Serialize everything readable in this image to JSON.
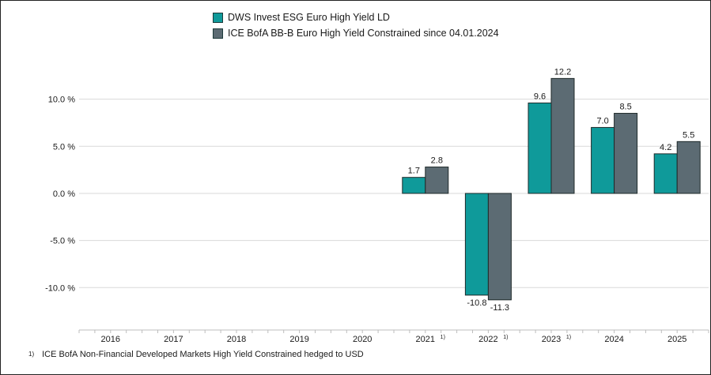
{
  "legend": [
    {
      "label": "DWS Invest ESG Euro High Yield LD",
      "color": "#0f9a9a"
    },
    {
      "label": "ICE BofA BB-B Euro High Yield Constrained since 04.01.2024",
      "color": "#5c6b73"
    }
  ],
  "footnote": {
    "marker": "1)",
    "text": "ICE BofA Non-Financial Developed Markets High Yield Constrained hedged to USD"
  },
  "chart_data": {
    "type": "bar",
    "categories": [
      "2016",
      "2017",
      "2018",
      "2019",
      "2020",
      "2021",
      "2022",
      "2023",
      "2024",
      "2025"
    ],
    "category_markers": [
      "",
      "",
      "",
      "",
      "",
      "1)",
      "1)",
      "1)",
      "",
      ""
    ],
    "series": [
      {
        "name": "DWS Invest ESG Euro High Yield LD",
        "values": [
          null,
          null,
          null,
          null,
          null,
          1.7,
          -10.8,
          9.6,
          7.0,
          4.2
        ],
        "labels": [
          "",
          "",
          "",
          "",
          "",
          "1.7",
          "-10.8",
          "9.6",
          "7.0",
          "4.2"
        ],
        "color": "#0f9a9a"
      },
      {
        "name": "ICE BofA BB-B Euro High Yield Constrained since 04.01.2024",
        "values": [
          null,
          null,
          null,
          null,
          null,
          2.8,
          -11.3,
          12.2,
          8.5,
          5.5
        ],
        "labels": [
          "",
          "",
          "",
          "",
          "",
          "2.8",
          "-11.3",
          "12.2",
          "8.5",
          "5.5"
        ],
        "color": "#5c6b73"
      }
    ],
    "yticks": [
      -10,
      -5,
      0,
      5,
      10
    ],
    "ytick_labels": [
      "-10.0 %",
      "-5.0 %",
      "0.0 %",
      "5.0 %",
      "10.0 %"
    ],
    "ylim": [
      -14.5,
      15.5
    ],
    "grid": true,
    "legend_position": "top-center",
    "xlabel": "",
    "ylabel": ""
  }
}
